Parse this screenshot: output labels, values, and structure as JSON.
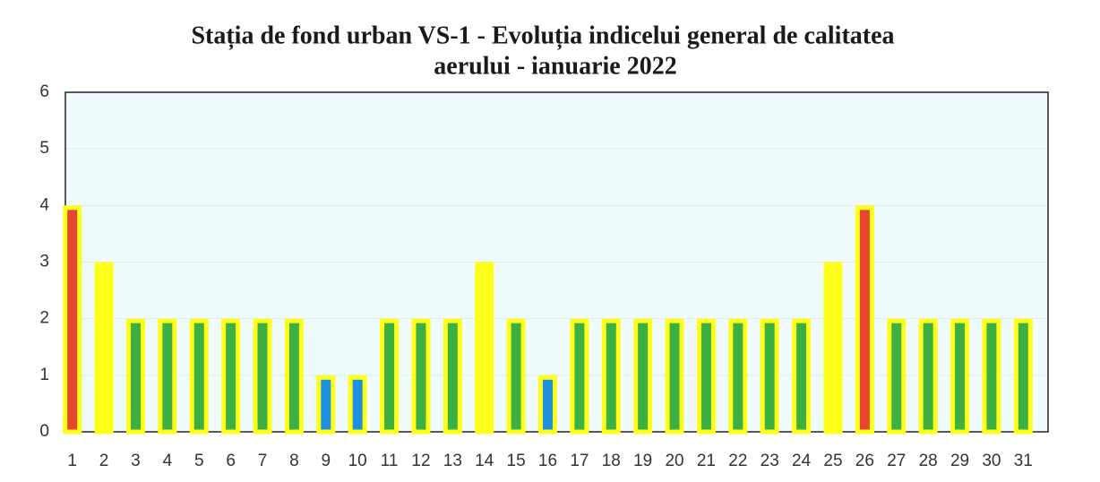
{
  "chart_data": {
    "type": "bar",
    "title": [
      "Stația de fond urban VS-1 - Evoluția indicelui general de calitatea",
      "aerului - ianuarie 2022"
    ],
    "categories": [
      "1",
      "2",
      "3",
      "4",
      "5",
      "6",
      "7",
      "8",
      "9",
      "10",
      "11",
      "12",
      "13",
      "14",
      "15",
      "16",
      "17",
      "18",
      "19",
      "20",
      "21",
      "22",
      "23",
      "24",
      "25",
      "26",
      "27",
      "28",
      "29",
      "30",
      "31"
    ],
    "values": [
      4,
      3,
      2,
      2,
      2,
      2,
      2,
      2,
      1,
      1,
      2,
      2,
      2,
      3,
      2,
      1,
      2,
      2,
      2,
      2,
      2,
      2,
      2,
      2,
      3,
      4,
      2,
      2,
      2,
      2,
      2
    ],
    "colors": [
      "#e8452e",
      "#ffff1a",
      "#3cb043",
      "#3cb043",
      "#3cb043",
      "#3cb043",
      "#3cb043",
      "#3cb043",
      "#1e90e0",
      "#1e90e0",
      "#3cb043",
      "#3cb043",
      "#3cb043",
      "#ffff1a",
      "#3cb043",
      "#1e90e0",
      "#3cb043",
      "#3cb043",
      "#3cb043",
      "#3cb043",
      "#3cb043",
      "#3cb043",
      "#3cb043",
      "#3cb043",
      "#ffff1a",
      "#e8452e",
      "#3cb043",
      "#3cb043",
      "#3cb043",
      "#3cb043",
      "#3cb043"
    ],
    "edge_color": "#ffff1a",
    "ylim": [
      0,
      6
    ],
    "yticks": [
      0,
      1,
      2,
      3,
      4,
      5,
      6
    ],
    "grid": true
  }
}
